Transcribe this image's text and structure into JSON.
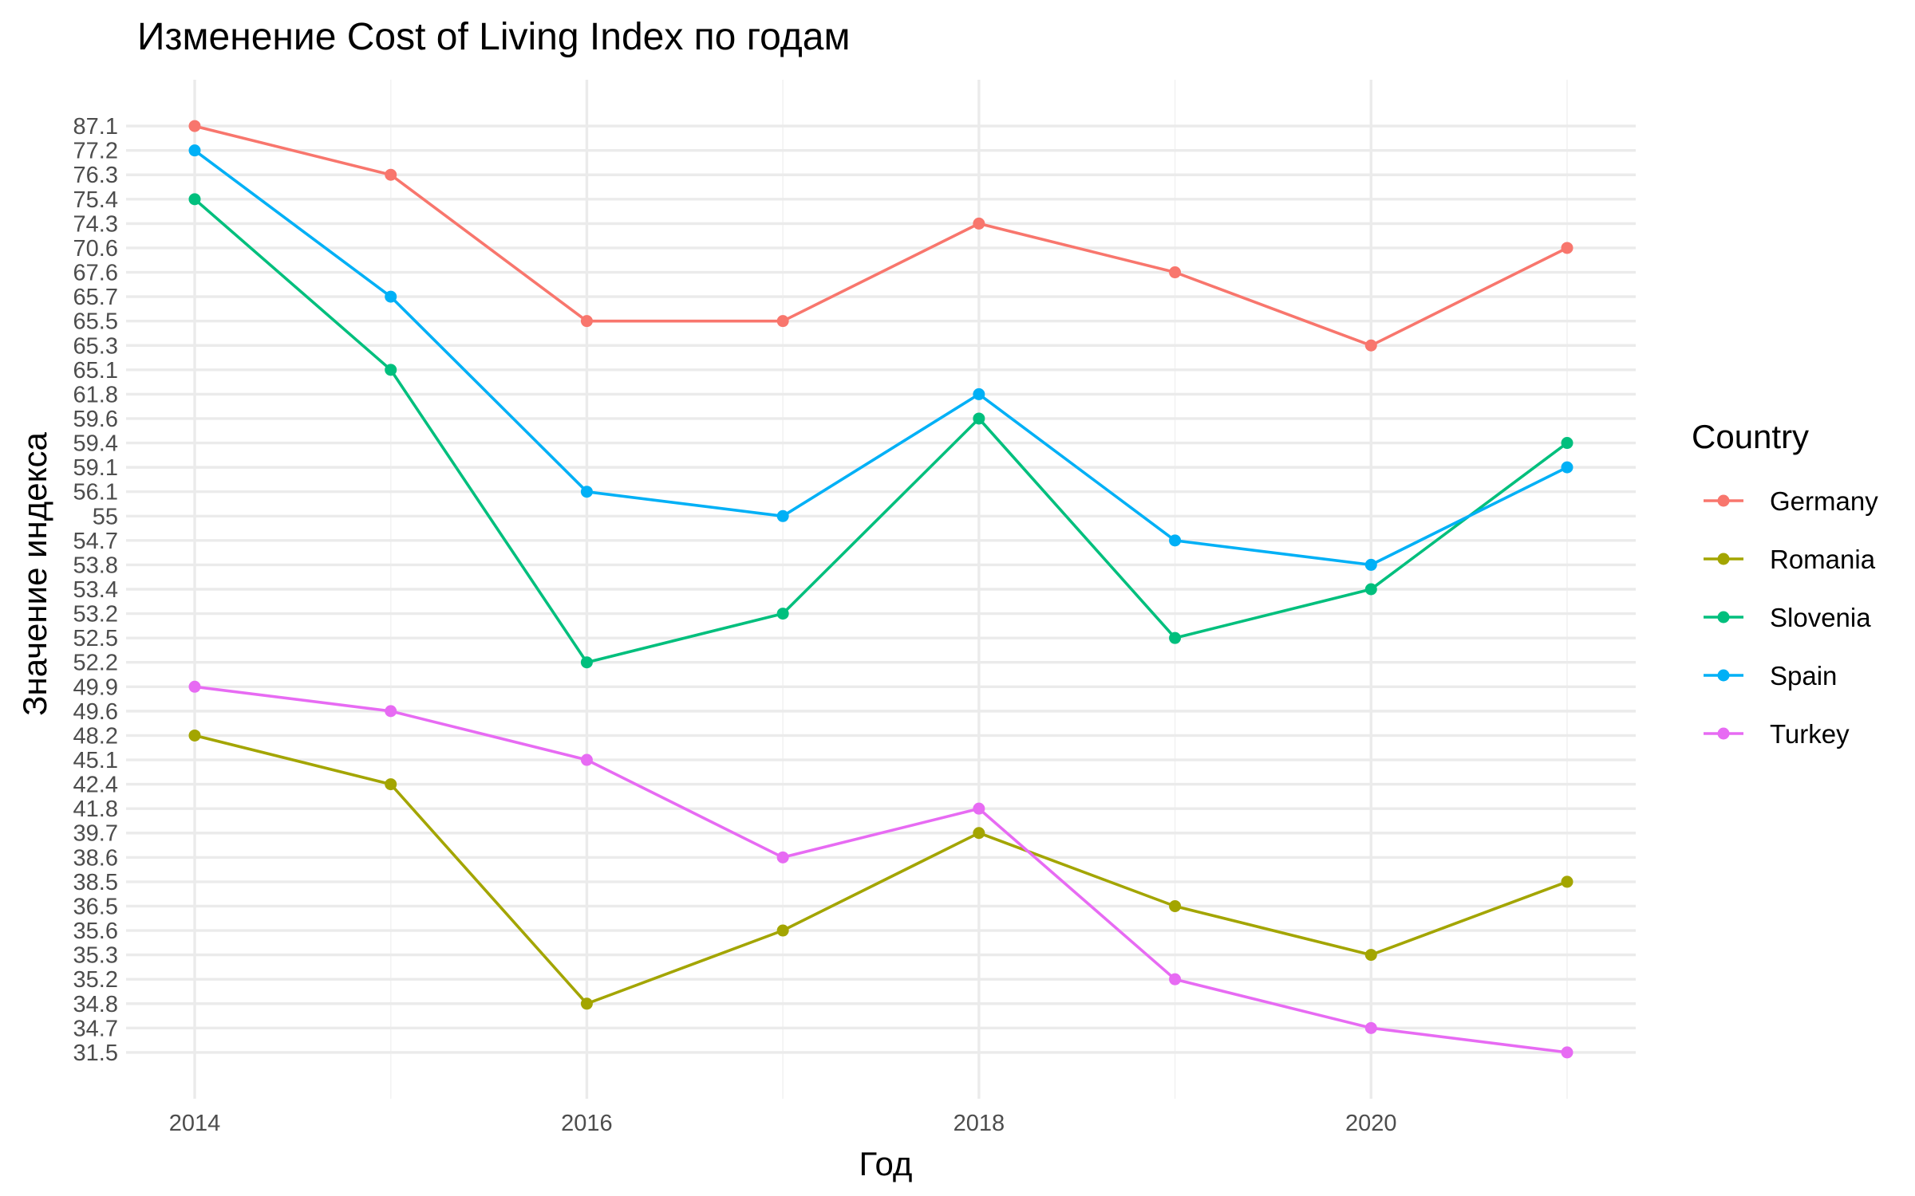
{
  "chart_data": {
    "type": "line",
    "title": "Изменение Cost of Living Index по годам",
    "xlabel": "Год",
    "ylabel": "Значение индекса",
    "x": [
      2014,
      2015,
      2016,
      2017,
      2018,
      2019,
      2020,
      2021
    ],
    "x_ticks": [
      "2014",
      "2016",
      "2018",
      "2020"
    ],
    "y_scale": "categorical",
    "y_ticks": [
      "31.5",
      "34.7",
      "34.8",
      "35.2",
      "35.3",
      "35.6",
      "36.5",
      "38.5",
      "38.6",
      "39.7",
      "41.8",
      "42.4",
      "45.1",
      "48.2",
      "49.6",
      "49.9",
      "52.2",
      "52.5",
      "53.2",
      "53.4",
      "53.8",
      "54.7",
      "55",
      "56.1",
      "59.1",
      "59.4",
      "59.6",
      "61.8",
      "65.1",
      "65.3",
      "65.5",
      "65.7",
      "67.6",
      "70.6",
      "74.3",
      "75.4",
      "76.3",
      "77.2",
      "87.1"
    ],
    "legend": {
      "title": "Country",
      "position": "right"
    },
    "grid": true,
    "series": [
      {
        "name": "Germany",
        "color": "#F8766D",
        "values": [
          "87.1",
          "76.3",
          "65.5",
          "65.5",
          "74.3",
          "67.6",
          "65.3",
          "70.6"
        ]
      },
      {
        "name": "Romania",
        "color": "#A3A500",
        "values": [
          "48.2",
          "42.4",
          "34.8",
          "35.6",
          "39.7",
          "36.5",
          "35.3",
          "38.5"
        ]
      },
      {
        "name": "Slovenia",
        "color": "#00BF7D",
        "values": [
          "75.4",
          "65.1",
          "52.2",
          "53.2",
          "59.6",
          "52.5",
          "53.4",
          "59.4"
        ]
      },
      {
        "name": "Spain",
        "color": "#00B0F6",
        "values": [
          "77.2",
          "65.7",
          "56.1",
          "55",
          "61.8",
          "54.7",
          "53.8",
          "59.1"
        ]
      },
      {
        "name": "Turkey",
        "color": "#E76BF3",
        "values": [
          "49.9",
          "49.6",
          "45.1",
          "38.6",
          "41.8",
          "35.2",
          "34.7",
          "31.5"
        ]
      }
    ]
  }
}
